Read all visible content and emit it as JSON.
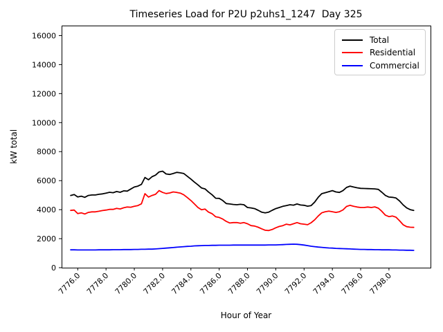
{
  "chart_data": {
    "type": "line",
    "title": "Timeseries Load for P2U p2uhs1_1247  Day 325",
    "xlabel": "Hour of Year",
    "ylabel": "kW total",
    "grid": false,
    "legend_position": "upper right",
    "xlim": [
      7774.86,
      7800.94
    ],
    "ylim": [
      0,
      16690
    ],
    "xticks": [
      7776,
      7778,
      7780,
      7782,
      7784,
      7786,
      7788,
      7790,
      7792,
      7794,
      7796,
      7798
    ],
    "xtick_labels": [
      "7776.0",
      "7778.0",
      "7780.0",
      "7782.0",
      "7784.0",
      "7786.0",
      "7788.0",
      "7790.0",
      "7792.0",
      "7794.0",
      "7796.0",
      "7798.0"
    ],
    "yticks": [
      0,
      2000,
      4000,
      6000,
      8000,
      10000,
      12000,
      14000,
      16000
    ],
    "ytick_labels": [
      "0",
      "2000",
      "4000",
      "6000",
      "8000",
      "10000",
      "12000",
      "14000",
      "16000"
    ],
    "x": [
      7775.5,
      7775.75,
      7776.0,
      7776.25,
      7776.5,
      7776.75,
      7777.0,
      7777.25,
      7777.5,
      7777.75,
      7778.0,
      7778.25,
      7778.5,
      7778.75,
      7779.0,
      7779.25,
      7779.5,
      7779.75,
      7780.0,
      7780.25,
      7780.5,
      7780.75,
      7781.0,
      7781.25,
      7781.5,
      7781.75,
      7782.0,
      7782.25,
      7782.5,
      7782.75,
      7783.0,
      7783.25,
      7783.5,
      7783.75,
      7784.0,
      7784.25,
      7784.5,
      7784.75,
      7785.0,
      7785.25,
      7785.5,
      7785.75,
      7786.0,
      7786.25,
      7786.5,
      7786.75,
      7787.0,
      7787.25,
      7787.5,
      7787.75,
      7788.0,
      7788.25,
      7788.5,
      7788.75,
      7789.0,
      7789.25,
      7789.5,
      7789.75,
      7790.0,
      7790.25,
      7790.5,
      7790.75,
      7791.0,
      7791.25,
      7791.5,
      7791.75,
      7792.0,
      7792.25,
      7792.5,
      7792.75,
      7793.0,
      7793.25,
      7793.5,
      7793.75,
      7794.0,
      7794.25,
      7794.5,
      7794.75,
      7795.0,
      7795.25,
      7795.5,
      7795.75,
      7796.0,
      7796.25,
      7796.5,
      7796.75,
      7797.0,
      7797.25,
      7797.5,
      7797.75,
      7798.0,
      7798.25,
      7798.5,
      7798.75,
      7799.0,
      7799.25,
      7799.5,
      7799.75
    ],
    "series": [
      {
        "name": "Total",
        "color": "#000000",
        "values": [
          4980,
          5040,
          4880,
          4930,
          4850,
          4980,
          5010,
          5010,
          5060,
          5090,
          5140,
          5200,
          5170,
          5250,
          5200,
          5300,
          5280,
          5420,
          5560,
          5620,
          5740,
          6220,
          6060,
          6270,
          6380,
          6600,
          6650,
          6460,
          6430,
          6490,
          6570,
          6540,
          6490,
          6300,
          6110,
          5900,
          5710,
          5500,
          5430,
          5210,
          5020,
          4790,
          4780,
          4630,
          4420,
          4390,
          4360,
          4340,
          4370,
          4340,
          4150,
          4120,
          4070,
          3960,
          3830,
          3780,
          3830,
          3960,
          4070,
          4150,
          4230,
          4280,
          4340,
          4310,
          4390,
          4320,
          4300,
          4240,
          4280,
          4520,
          4850,
          5100,
          5170,
          5240,
          5310,
          5220,
          5190,
          5310,
          5530,
          5620,
          5560,
          5510,
          5470,
          5460,
          5450,
          5440,
          5430,
          5400,
          5200,
          4980,
          4870,
          4850,
          4800,
          4600,
          4330,
          4120,
          4000,
          3950
        ]
      },
      {
        "name": "Residential",
        "color": "#ff0000",
        "values": [
          3950,
          3970,
          3730,
          3780,
          3700,
          3810,
          3850,
          3850,
          3890,
          3940,
          3970,
          4020,
          4020,
          4090,
          4050,
          4130,
          4180,
          4170,
          4230,
          4280,
          4400,
          5100,
          4870,
          4980,
          5060,
          5310,
          5190,
          5110,
          5150,
          5220,
          5190,
          5140,
          5020,
          4830,
          4630,
          4390,
          4150,
          3990,
          4040,
          3830,
          3720,
          3510,
          3460,
          3350,
          3190,
          3080,
          3110,
          3110,
          3060,
          3110,
          3030,
          2900,
          2870,
          2790,
          2680,
          2580,
          2560,
          2630,
          2750,
          2840,
          2900,
          3000,
          2950,
          3030,
          3110,
          3030,
          3000,
          2960,
          3100,
          3300,
          3560,
          3780,
          3860,
          3900,
          3860,
          3810,
          3860,
          3980,
          4220,
          4300,
          4230,
          4180,
          4150,
          4150,
          4180,
          4150,
          4190,
          4100,
          3880,
          3620,
          3520,
          3560,
          3480,
          3240,
          2960,
          2830,
          2790,
          2780
        ]
      },
      {
        "name": "Commercial",
        "color": "#0000ff",
        "values": [
          1230,
          1230,
          1220,
          1220,
          1220,
          1220,
          1220,
          1220,
          1230,
          1230,
          1230,
          1230,
          1240,
          1240,
          1240,
          1250,
          1250,
          1250,
          1260,
          1260,
          1270,
          1270,
          1280,
          1280,
          1290,
          1310,
          1330,
          1350,
          1370,
          1390,
          1410,
          1430,
          1450,
          1470,
          1480,
          1500,
          1510,
          1520,
          1530,
          1530,
          1540,
          1540,
          1550,
          1550,
          1550,
          1550,
          1560,
          1560,
          1560,
          1560,
          1560,
          1560,
          1560,
          1560,
          1560,
          1560,
          1570,
          1570,
          1570,
          1580,
          1590,
          1600,
          1610,
          1620,
          1610,
          1590,
          1560,
          1520,
          1480,
          1450,
          1420,
          1400,
          1380,
          1360,
          1350,
          1330,
          1320,
          1310,
          1300,
          1290,
          1280,
          1270,
          1260,
          1260,
          1250,
          1250,
          1240,
          1240,
          1230,
          1230,
          1230,
          1220,
          1220,
          1210,
          1210,
          1200,
          1200,
          1190
        ]
      }
    ]
  }
}
